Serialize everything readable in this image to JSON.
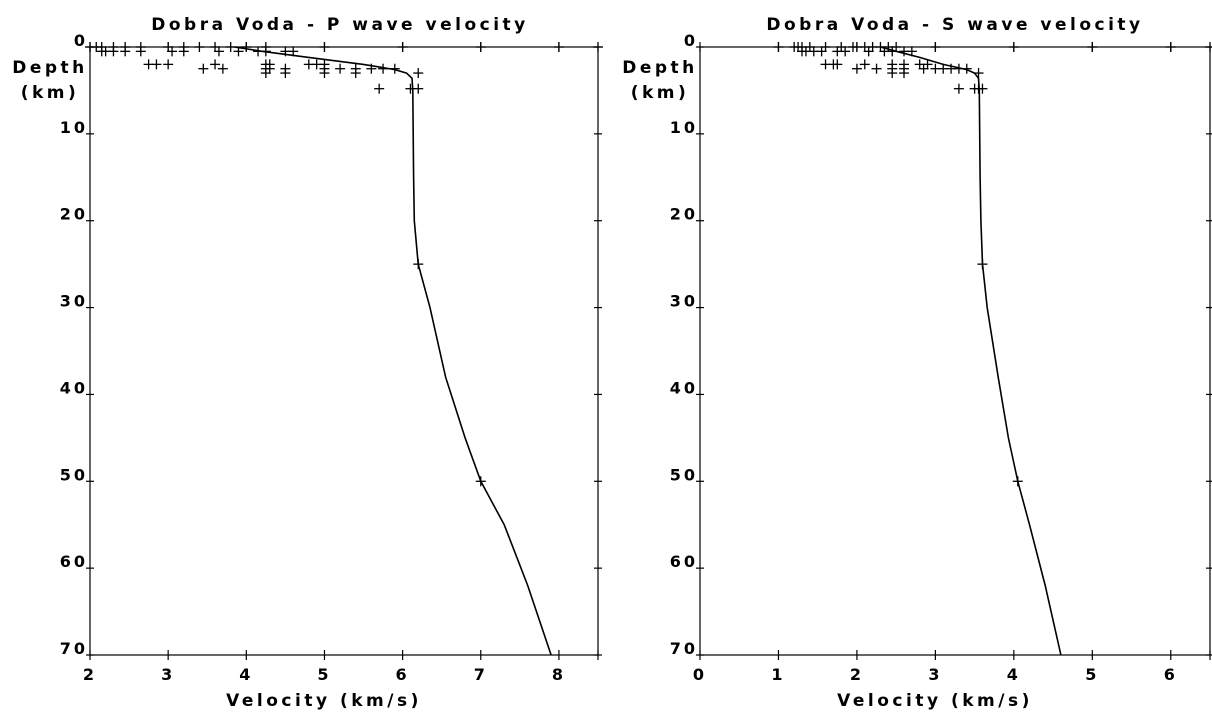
{
  "chart_data": [
    {
      "type": "line",
      "title": "Dobra Voda - P wave velocity",
      "xlabel": "Velocity (km/s)",
      "ylabel_lines": [
        "Depth",
        "(km)"
      ],
      "xlim": [
        2,
        8.5
      ],
      "ylim": [
        0,
        70
      ],
      "y_inverted": true,
      "xticks": [
        2,
        3,
        4,
        5,
        6,
        7,
        8
      ],
      "xtick_labels": [
        "2",
        "3",
        "4",
        "5",
        "6",
        "7",
        "8"
      ],
      "yticks": [
        0,
        10,
        20,
        30,
        40,
        50,
        60,
        70
      ],
      "ytick_labels": [
        "0",
        "10",
        "20",
        "30",
        "40",
        "50",
        "60",
        "70"
      ],
      "grid": false,
      "series": [
        {
          "kind": "line",
          "points": [
            [
              3.85,
              0
            ],
            [
              4.2,
              0.5
            ],
            [
              4.8,
              1.2
            ],
            [
              5.5,
              2.0
            ],
            [
              5.9,
              2.6
            ],
            [
              6.05,
              3.0
            ],
            [
              6.12,
              3.6
            ],
            [
              6.13,
              5.0
            ],
            [
              6.14,
              15
            ],
            [
              6.15,
              20
            ],
            [
              6.2,
              25
            ],
            [
              6.35,
              30
            ],
            [
              6.55,
              38
            ],
            [
              6.8,
              45
            ],
            [
              7.0,
              50
            ],
            [
              7.3,
              55
            ],
            [
              7.6,
              62
            ],
            [
              7.9,
              70
            ]
          ]
        },
        {
          "kind": "scatter",
          "points": [
            [
              2.0,
              0
            ],
            [
              2.08,
              0
            ],
            [
              2.15,
              0
            ],
            [
              2.3,
              0
            ],
            [
              2.45,
              0
            ],
            [
              2.65,
              0
            ],
            [
              3.0,
              0
            ],
            [
              3.2,
              0
            ],
            [
              3.4,
              0
            ],
            [
              3.6,
              0
            ],
            [
              3.8,
              0
            ],
            [
              4.0,
              0
            ],
            [
              4.25,
              0
            ],
            [
              5.0,
              0
            ],
            [
              6.0,
              0
            ],
            [
              7.0,
              0
            ],
            [
              8.0,
              0
            ],
            [
              8.5,
              0
            ],
            [
              2.15,
              0.5
            ],
            [
              2.2,
              0.5
            ],
            [
              2.3,
              0.5
            ],
            [
              2.45,
              0.5
            ],
            [
              2.65,
              0.5
            ],
            [
              3.05,
              0.5
            ],
            [
              3.2,
              0.5
            ],
            [
              3.65,
              0.5
            ],
            [
              3.9,
              0.5
            ],
            [
              4.15,
              0.5
            ],
            [
              4.25,
              0.5
            ],
            [
              4.5,
              0.5
            ],
            [
              4.6,
              0.5
            ],
            [
              2.75,
              2.0
            ],
            [
              2.85,
              2.0
            ],
            [
              3.0,
              2.0
            ],
            [
              3.6,
              2.0
            ],
            [
              3.45,
              2.5
            ],
            [
              3.7,
              2.5
            ],
            [
              4.25,
              2.0
            ],
            [
              4.3,
              2.0
            ],
            [
              4.25,
              2.5
            ],
            [
              4.25,
              3.0
            ],
            [
              4.3,
              2.5
            ],
            [
              4.5,
              2.5
            ],
            [
              4.5,
              3.0
            ],
            [
              4.8,
              2.0
            ],
            [
              4.9,
              2.0
            ],
            [
              5.0,
              2.0
            ],
            [
              5.0,
              2.5
            ],
            [
              5.0,
              3.0
            ],
            [
              5.2,
              2.5
            ],
            [
              5.4,
              2.5
            ],
            [
              5.4,
              3.0
            ],
            [
              5.6,
              2.5
            ],
            [
              5.75,
              2.5
            ],
            [
              5.9,
              2.5
            ],
            [
              6.2,
              3.0
            ],
            [
              5.7,
              4.8
            ],
            [
              6.1,
              4.8
            ],
            [
              6.2,
              4.8
            ],
            [
              6.2,
              25
            ],
            [
              7.0,
              50
            ]
          ]
        }
      ]
    },
    {
      "type": "line",
      "title": "Dobra Voda - S wave velocity",
      "xlabel": "Velocity (km/s)",
      "ylabel_lines": [
        "Depth",
        "(km)"
      ],
      "xlim": [
        0,
        6.5
      ],
      "ylim": [
        0,
        70
      ],
      "y_inverted": true,
      "xticks": [
        0,
        1,
        2,
        3,
        4,
        5,
        6
      ],
      "xtick_labels": [
        "0",
        "1",
        "2",
        "3",
        "4",
        "5",
        "6"
      ],
      "yticks": [
        0,
        10,
        20,
        30,
        40,
        50,
        60,
        70
      ],
      "ytick_labels": [
        "0",
        "10",
        "20",
        "30",
        "40",
        "50",
        "60",
        "70"
      ],
      "grid": false,
      "series": [
        {
          "kind": "line",
          "points": [
            [
              2.3,
              0
            ],
            [
              2.5,
              0.5
            ],
            [
              2.8,
              1.2
            ],
            [
              3.1,
              2.0
            ],
            [
              3.4,
              2.6
            ],
            [
              3.5,
              3.0
            ],
            [
              3.55,
              3.6
            ],
            [
              3.56,
              5.0
            ],
            [
              3.57,
              15
            ],
            [
              3.58,
              20
            ],
            [
              3.6,
              25
            ],
            [
              3.66,
              30
            ],
            [
              3.8,
              38
            ],
            [
              3.93,
              45
            ],
            [
              4.05,
              50
            ],
            [
              4.2,
              55
            ],
            [
              4.4,
              62
            ],
            [
              4.6,
              70
            ]
          ]
        },
        {
          "kind": "scatter",
          "points": [
            [
              1.0,
              0
            ],
            [
              1.2,
              0
            ],
            [
              1.25,
              0
            ],
            [
              1.3,
              0
            ],
            [
              1.4,
              0
            ],
            [
              1.6,
              0
            ],
            [
              1.8,
              0
            ],
            [
              1.95,
              0
            ],
            [
              2.0,
              0
            ],
            [
              2.1,
              0
            ],
            [
              2.2,
              0
            ],
            [
              2.3,
              0
            ],
            [
              2.4,
              0
            ],
            [
              2.5,
              0
            ],
            [
              3.0,
              0
            ],
            [
              4.0,
              0
            ],
            [
              5.0,
              0
            ],
            [
              6.0,
              0
            ],
            [
              6.5,
              0
            ],
            [
              1.3,
              0.5
            ],
            [
              1.35,
              0.5
            ],
            [
              1.45,
              0.5
            ],
            [
              1.55,
              0.5
            ],
            [
              1.75,
              0.5
            ],
            [
              1.85,
              0.5
            ],
            [
              2.15,
              0.5
            ],
            [
              2.35,
              0.5
            ],
            [
              2.45,
              0.5
            ],
            [
              2.6,
              0.5
            ],
            [
              2.7,
              0.5
            ],
            [
              1.6,
              2.0
            ],
            [
              1.7,
              2.0
            ],
            [
              1.75,
              2.0
            ],
            [
              2.0,
              2.5
            ],
            [
              2.1,
              2.0
            ],
            [
              2.25,
              2.5
            ],
            [
              2.45,
              2.0
            ],
            [
              2.45,
              2.5
            ],
            [
              2.45,
              3.0
            ],
            [
              2.6,
              2.0
            ],
            [
              2.6,
              2.5
            ],
            [
              2.6,
              3.0
            ],
            [
              2.8,
              2.0
            ],
            [
              2.85,
              2.5
            ],
            [
              2.9,
              2.0
            ],
            [
              3.0,
              2.5
            ],
            [
              3.1,
              2.5
            ],
            [
              3.2,
              2.5
            ],
            [
              3.3,
              2.5
            ],
            [
              3.4,
              2.5
            ],
            [
              3.55,
              3.0
            ],
            [
              3.3,
              4.8
            ],
            [
              3.5,
              4.8
            ],
            [
              3.55,
              4.8
            ],
            [
              3.6,
              4.8
            ],
            [
              3.6,
              25
            ],
            [
              4.05,
              50
            ]
          ]
        }
      ]
    }
  ]
}
